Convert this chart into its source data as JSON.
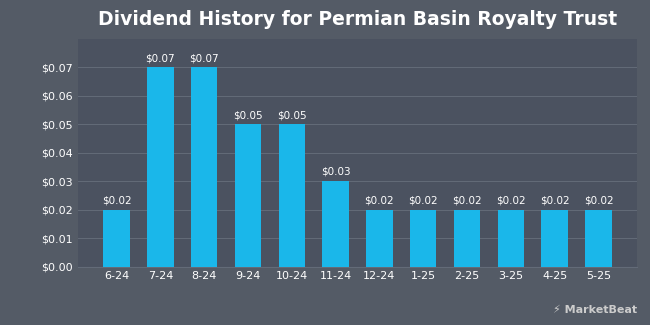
{
  "title": "Dividend History for Permian Basin Royalty Trust",
  "categories": [
    "6-24",
    "7-24",
    "8-24",
    "9-24",
    "10-24",
    "11-24",
    "12-24",
    "1-25",
    "2-25",
    "3-25",
    "4-25",
    "5-25"
  ],
  "values": [
    0.02,
    0.07,
    0.07,
    0.05,
    0.05,
    0.03,
    0.02,
    0.02,
    0.02,
    0.02,
    0.02,
    0.02
  ],
  "bar_color": "#1ab7ea",
  "background_color": "#545b66",
  "plot_bg_color": "#4b5260",
  "grid_color": "#636b78",
  "text_color": "#ffffff",
  "title_fontsize": 13.5,
  "label_fontsize": 7.5,
  "tick_fontsize": 8,
  "ylim": [
    0,
    0.08
  ],
  "ytick_vals": [
    0.0,
    0.01,
    0.02,
    0.03,
    0.04,
    0.05,
    0.06,
    0.07
  ],
  "bar_width": 0.6,
  "watermark": "⫽ MarketBeat"
}
